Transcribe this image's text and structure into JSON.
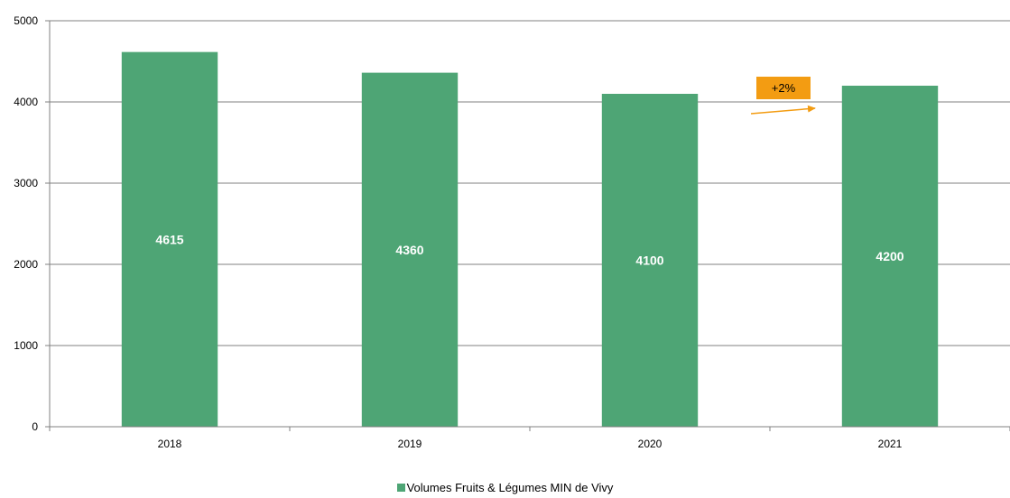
{
  "chart_data": {
    "type": "bar",
    "categories": [
      "2018",
      "2019",
      "2020",
      "2021"
    ],
    "series": [
      {
        "name": "Volumes Fruits & Légumes MIN de Vivy",
        "values": [
          4615,
          4360,
          4100,
          4200
        ],
        "color": "#4ea575"
      }
    ],
    "data_labels": [
      "4615",
      "4360",
      "4100",
      "4200"
    ],
    "ylim": [
      0,
      5000
    ],
    "yticks": [
      "0",
      "1000",
      "2000",
      "3000",
      "4000",
      "5000"
    ],
    "grid": true,
    "legend_position": "bottom",
    "annotation": {
      "text": "+2%",
      "color": "#f39c12",
      "arrow": "2020 → 2021"
    }
  }
}
